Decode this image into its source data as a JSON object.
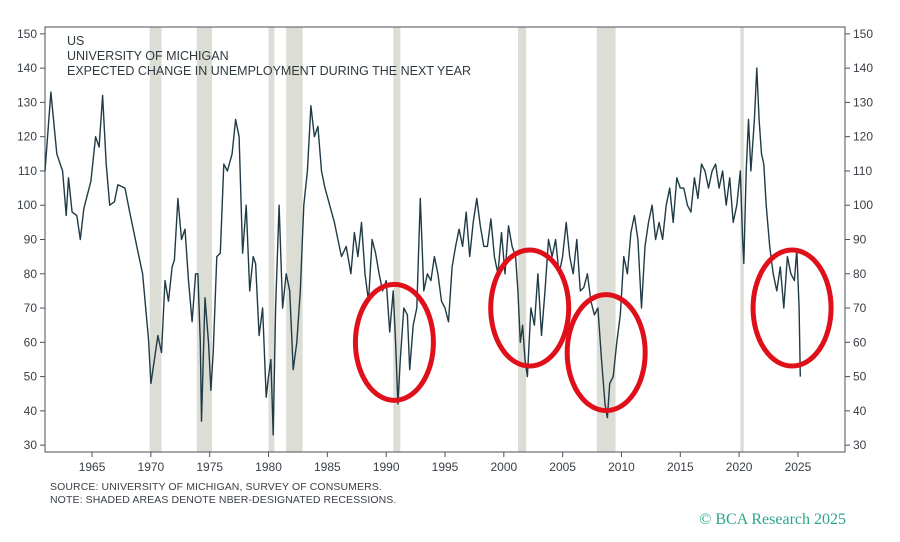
{
  "chart_data": {
    "type": "line",
    "title_lines": [
      "US",
      "UNIVERSITY OF MICHIGAN",
      "EXPECTED CHANGE IN UNEMPLOYMENT DURING THE NEXT YEAR"
    ],
    "xlabel": "",
    "ylabel": "",
    "xlim": [
      1961,
      2029
    ],
    "ylim": [
      28,
      152
    ],
    "x_ticks": [
      1965,
      1970,
      1975,
      1980,
      1985,
      1990,
      1995,
      2000,
      2005,
      2010,
      2015,
      2020,
      2025
    ],
    "y_ticks": [
      30,
      40,
      50,
      60,
      70,
      80,
      90,
      100,
      110,
      120,
      130,
      140,
      150
    ],
    "y_axis_sides": [
      "left",
      "right"
    ],
    "grid": false,
    "line_color": "#1f3b45",
    "recession_color": "#dcded6",
    "highlight_color": "#e0101a",
    "recessions": [
      [
        1969.9,
        1970.9
      ],
      [
        1973.9,
        1975.2
      ],
      [
        1980.0,
        1980.5
      ],
      [
        1981.5,
        1982.9
      ],
      [
        1990.6,
        1991.2
      ],
      [
        2001.2,
        2001.9
      ],
      [
        2007.9,
        2009.5
      ],
      [
        2020.1,
        2020.4
      ]
    ],
    "highlight_circles": [
      {
        "x": 1990.7,
        "y": 60
      },
      {
        "x": 2002.2,
        "y": 70
      },
      {
        "x": 2008.7,
        "y": 57
      },
      {
        "x": 2024.5,
        "y": 70
      }
    ],
    "series": [
      {
        "points": [
          [
            1961.0,
            110
          ],
          [
            1961.5,
            133
          ],
          [
            1962.0,
            115
          ],
          [
            1962.5,
            110
          ],
          [
            1962.8,
            97
          ],
          [
            1963.0,
            108
          ],
          [
            1963.3,
            98
          ],
          [
            1963.7,
            97
          ],
          [
            1964.0,
            90
          ],
          [
            1964.3,
            99
          ],
          [
            1964.9,
            107
          ],
          [
            1965.3,
            120
          ],
          [
            1965.6,
            117
          ],
          [
            1965.9,
            132
          ],
          [
            1966.2,
            112
          ],
          [
            1966.5,
            100
          ],
          [
            1966.9,
            101
          ],
          [
            1967.2,
            106
          ],
          [
            1967.8,
            105
          ],
          [
            1968.2,
            98
          ],
          [
            1968.8,
            88
          ],
          [
            1969.3,
            80
          ],
          [
            1969.8,
            61
          ],
          [
            1970.0,
            48
          ],
          [
            1970.3,
            55
          ],
          [
            1970.6,
            62
          ],
          [
            1970.9,
            57
          ],
          [
            1971.2,
            78
          ],
          [
            1971.5,
            72
          ],
          [
            1971.8,
            82
          ],
          [
            1972.0,
            84
          ],
          [
            1972.3,
            102
          ],
          [
            1972.6,
            90
          ],
          [
            1972.9,
            93
          ],
          [
            1973.2,
            78
          ],
          [
            1973.5,
            66
          ],
          [
            1973.8,
            80
          ],
          [
            1974.0,
            80
          ],
          [
            1974.2,
            60
          ],
          [
            1974.3,
            37
          ],
          [
            1974.6,
            73
          ],
          [
            1974.9,
            60
          ],
          [
            1975.1,
            46
          ],
          [
            1975.3,
            57
          ],
          [
            1975.6,
            85
          ],
          [
            1975.9,
            86
          ],
          [
            1976.2,
            112
          ],
          [
            1976.5,
            110
          ],
          [
            1976.9,
            115
          ],
          [
            1977.2,
            125
          ],
          [
            1977.5,
            120
          ],
          [
            1977.8,
            86
          ],
          [
            1978.1,
            100
          ],
          [
            1978.4,
            75
          ],
          [
            1978.7,
            85
          ],
          [
            1978.9,
            83
          ],
          [
            1979.2,
            62
          ],
          [
            1979.5,
            70
          ],
          [
            1979.8,
            44
          ],
          [
            1980.0,
            50
          ],
          [
            1980.2,
            55
          ],
          [
            1980.4,
            33
          ],
          [
            1980.6,
            70
          ],
          [
            1980.9,
            100
          ],
          [
            1981.2,
            70
          ],
          [
            1981.5,
            80
          ],
          [
            1981.8,
            75
          ],
          [
            1982.1,
            52
          ],
          [
            1982.4,
            60
          ],
          [
            1982.7,
            75
          ],
          [
            1983.0,
            100
          ],
          [
            1983.3,
            110
          ],
          [
            1983.6,
            129
          ],
          [
            1983.9,
            120
          ],
          [
            1984.2,
            123
          ],
          [
            1984.5,
            110
          ],
          [
            1984.8,
            105
          ],
          [
            1985.2,
            100
          ],
          [
            1985.6,
            95
          ],
          [
            1985.9,
            90
          ],
          [
            1986.2,
            85
          ],
          [
            1986.6,
            88
          ],
          [
            1987.0,
            80
          ],
          [
            1987.3,
            92
          ],
          [
            1987.6,
            85
          ],
          [
            1987.9,
            95
          ],
          [
            1988.2,
            80
          ],
          [
            1988.5,
            72
          ],
          [
            1988.8,
            90
          ],
          [
            1989.1,
            86
          ],
          [
            1989.4,
            80
          ],
          [
            1989.7,
            75
          ],
          [
            1990.0,
            78
          ],
          [
            1990.3,
            63
          ],
          [
            1990.6,
            75
          ],
          [
            1990.8,
            60
          ],
          [
            1991.0,
            42
          ],
          [
            1991.2,
            55
          ],
          [
            1991.5,
            70
          ],
          [
            1991.8,
            68
          ],
          [
            1992.0,
            52
          ],
          [
            1992.3,
            65
          ],
          [
            1992.6,
            70
          ],
          [
            1992.9,
            102
          ],
          [
            1993.2,
            75
          ],
          [
            1993.5,
            80
          ],
          [
            1993.8,
            78
          ],
          [
            1994.1,
            85
          ],
          [
            1994.4,
            80
          ],
          [
            1994.7,
            72
          ],
          [
            1995.0,
            70
          ],
          [
            1995.3,
            66
          ],
          [
            1995.6,
            82
          ],
          [
            1995.9,
            88
          ],
          [
            1996.2,
            93
          ],
          [
            1996.5,
            88
          ],
          [
            1996.8,
            98
          ],
          [
            1997.1,
            85
          ],
          [
            1997.4,
            95
          ],
          [
            1997.7,
            102
          ],
          [
            1998.0,
            94
          ],
          [
            1998.3,
            88
          ],
          [
            1998.6,
            88
          ],
          [
            1998.9,
            96
          ],
          [
            1999.2,
            85
          ],
          [
            1999.5,
            80
          ],
          [
            1999.8,
            92
          ],
          [
            2000.1,
            80
          ],
          [
            2000.4,
            94
          ],
          [
            2000.7,
            88
          ],
          [
            2001.0,
            85
          ],
          [
            2001.2,
            75
          ],
          [
            2001.4,
            60
          ],
          [
            2001.6,
            65
          ],
          [
            2001.8,
            55
          ],
          [
            2002.0,
            50
          ],
          [
            2002.3,
            70
          ],
          [
            2002.6,
            65
          ],
          [
            2002.9,
            80
          ],
          [
            2003.2,
            62
          ],
          [
            2003.5,
            75
          ],
          [
            2003.8,
            90
          ],
          [
            2004.1,
            85
          ],
          [
            2004.4,
            90
          ],
          [
            2004.7,
            80
          ],
          [
            2005.0,
            85
          ],
          [
            2005.3,
            95
          ],
          [
            2005.6,
            85
          ],
          [
            2005.9,
            80
          ],
          [
            2006.2,
            90
          ],
          [
            2006.5,
            75
          ],
          [
            2006.8,
            76
          ],
          [
            2007.1,
            80
          ],
          [
            2007.4,
            72
          ],
          [
            2007.7,
            68
          ],
          [
            2008.0,
            70
          ],
          [
            2008.3,
            55
          ],
          [
            2008.6,
            42
          ],
          [
            2008.8,
            38
          ],
          [
            2009.0,
            48
          ],
          [
            2009.3,
            50
          ],
          [
            2009.6,
            60
          ],
          [
            2009.9,
            68
          ],
          [
            2010.2,
            85
          ],
          [
            2010.5,
            80
          ],
          [
            2010.8,
            92
          ],
          [
            2011.1,
            97
          ],
          [
            2011.4,
            90
          ],
          [
            2011.7,
            70
          ],
          [
            2012.0,
            88
          ],
          [
            2012.3,
            95
          ],
          [
            2012.6,
            100
          ],
          [
            2012.9,
            90
          ],
          [
            2013.2,
            95
          ],
          [
            2013.5,
            90
          ],
          [
            2013.8,
            100
          ],
          [
            2014.1,
            105
          ],
          [
            2014.4,
            95
          ],
          [
            2014.7,
            108
          ],
          [
            2015.0,
            105
          ],
          [
            2015.3,
            105
          ],
          [
            2015.6,
            100
          ],
          [
            2015.9,
            98
          ],
          [
            2016.2,
            108
          ],
          [
            2016.5,
            102
          ],
          [
            2016.8,
            112
          ],
          [
            2017.1,
            110
          ],
          [
            2017.4,
            105
          ],
          [
            2017.7,
            110
          ],
          [
            2018.0,
            112
          ],
          [
            2018.3,
            105
          ],
          [
            2018.6,
            110
          ],
          [
            2018.9,
            100
          ],
          [
            2019.2,
            108
          ],
          [
            2019.5,
            95
          ],
          [
            2019.8,
            100
          ],
          [
            2020.1,
            110
          ],
          [
            2020.3,
            90
          ],
          [
            2020.4,
            83
          ],
          [
            2020.6,
            110
          ],
          [
            2020.8,
            125
          ],
          [
            2021.0,
            110
          ],
          [
            2021.3,
            125
          ],
          [
            2021.5,
            140
          ],
          [
            2021.7,
            125
          ],
          [
            2021.9,
            115
          ],
          [
            2022.1,
            112
          ],
          [
            2022.3,
            100
          ],
          [
            2022.6,
            88
          ],
          [
            2022.9,
            80
          ],
          [
            2023.2,
            75
          ],
          [
            2023.5,
            82
          ],
          [
            2023.8,
            70
          ],
          [
            2024.1,
            85
          ],
          [
            2024.4,
            80
          ],
          [
            2024.7,
            78
          ],
          [
            2024.9,
            87
          ],
          [
            2025.1,
            70
          ],
          [
            2025.2,
            50
          ]
        ]
      }
    ]
  },
  "notes": {
    "source": "SOURCE: UNIVERSITY OF MICHIGAN, SURVEY OF CONSUMERS.",
    "note": "NOTE: SHADED AREAS DENOTE NBER-DESIGNATED RECESSIONS."
  },
  "credit": "© BCA Research 2025"
}
